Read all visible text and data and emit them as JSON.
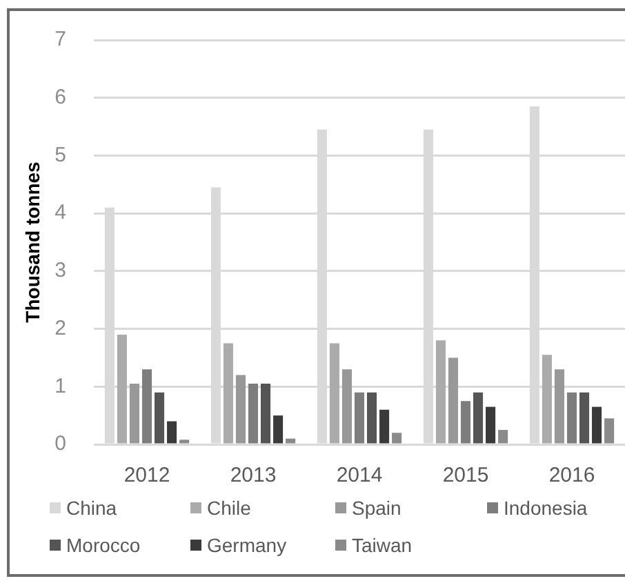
{
  "chart_data": {
    "type": "bar",
    "ylabel": "Thousand tonnes",
    "categories": [
      "2012",
      "2013",
      "2014",
      "2015",
      "2016"
    ],
    "series": [
      {
        "name": "China",
        "color": "#d9d9d9",
        "values": [
          4.1,
          4.45,
          5.45,
          5.45,
          5.85
        ]
      },
      {
        "name": "Chile",
        "color": "#ababab",
        "values": [
          1.9,
          1.75,
          1.75,
          1.8,
          1.55
        ]
      },
      {
        "name": "Spain",
        "color": "#989898",
        "values": [
          1.05,
          1.2,
          1.3,
          1.5,
          1.3
        ]
      },
      {
        "name": "Indonesia",
        "color": "#7d7d7d",
        "values": [
          1.3,
          1.05,
          0.9,
          0.75,
          0.9
        ]
      },
      {
        "name": "Morocco",
        "color": "#555555",
        "values": [
          0.9,
          1.05,
          0.9,
          0.9,
          0.9
        ]
      },
      {
        "name": "Germany",
        "color": "#3a3a3a",
        "values": [
          0.4,
          0.5,
          0.6,
          0.65,
          0.65
        ]
      },
      {
        "name": "Taiwan",
        "color": "#8a8a8a",
        "values": [
          0.08,
          0.1,
          0.2,
          0.25,
          0.45
        ]
      }
    ],
    "ylim": [
      0,
      7
    ],
    "yticks": [
      0,
      1,
      2,
      3,
      4,
      5,
      6,
      7
    ],
    "grid": "y",
    "legend": "bottom"
  }
}
